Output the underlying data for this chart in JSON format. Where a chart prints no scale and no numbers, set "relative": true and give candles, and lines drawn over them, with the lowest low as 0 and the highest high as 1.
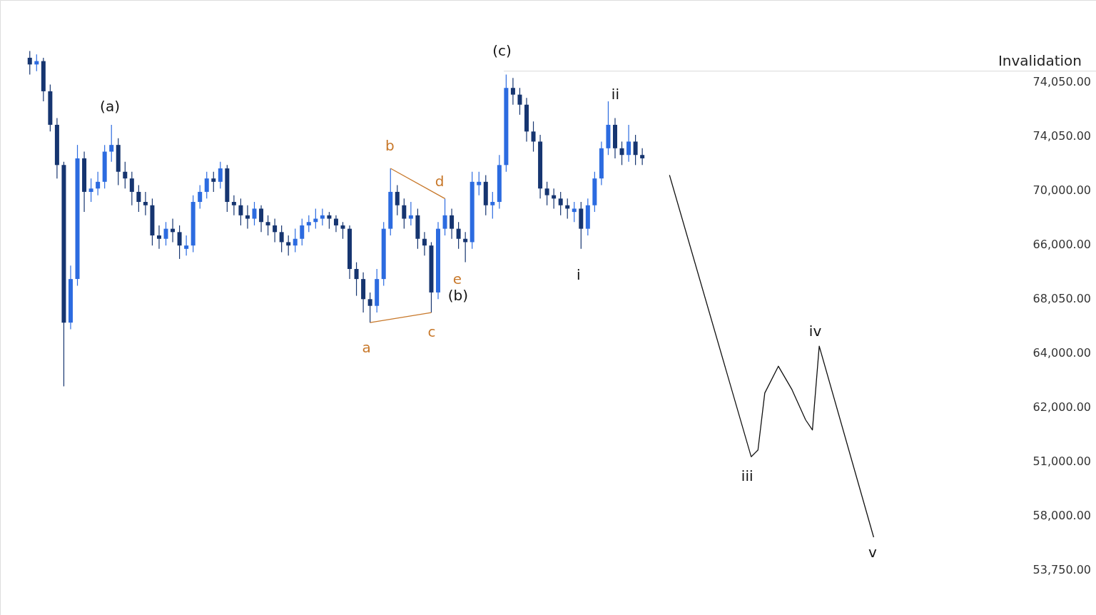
{
  "chart_data": {
    "type": "candlestick",
    "relative": true,
    "colors": [
      "#163570",
      "#2c6be0",
      "#163570",
      "#163570",
      "#163570",
      "#163570",
      "#2c6be0",
      "#2c6be0",
      "#163570",
      "#2c6be0",
      "#2c6be0",
      "#2c6be0",
      "#2c6be0",
      "#163570",
      "#163570",
      "#163570",
      "#163570",
      "#163570",
      "#163570",
      "#163570",
      "#2c6be0",
      "#163570",
      "#163570",
      "#2c6be0",
      "#2c6be0",
      "#2c6be0",
      "#2c6be0",
      "#163570",
      "#2c6be0",
      "#163570",
      "#163570",
      "#163570",
      "#163570",
      "#2c6be0",
      "#163570",
      "#163570",
      "#163570",
      "#163570",
      "#163570",
      "#2c6be0",
      "#2c6be0",
      "#2c6be0",
      "#2c6be0",
      "#2c6be0",
      "#163570",
      "#163570",
      "#163570",
      "#163570",
      "#163570",
      "#163570",
      "#163570",
      "#2c6be0",
      "#2c6be0",
      "#2c6be0",
      "#163570",
      "#163570",
      "#2c6be0",
      "#163570",
      "#163570",
      "#163570",
      "#2c6be0",
      "#2c6be0",
      "#163570",
      "#163570",
      "#163570",
      "#2c6be0",
      "#2c6be0",
      "#163570",
      "#2c6be0",
      "#2c6be0",
      "#2c6be0",
      "#163570",
      "#163570",
      "#163570",
      "#163570",
      "#163570",
      "#163570",
      "#163570",
      "#163570",
      "#163570",
      "#2c6be0",
      "#163570",
      "#2c6be0",
      "#2c6be0",
      "#2c6be0",
      "#2c6be0",
      "#163570",
      "#163570",
      "#2c6be0",
      "#163570",
      "#163570",
      null,
      null,
      null,
      null,
      null,
      null,
      null,
      null,
      null,
      null,
      null,
      null,
      null,
      null,
      null,
      null,
      null,
      null,
      null,
      null,
      null,
      null,
      null,
      null,
      null,
      null,
      null,
      null,
      null,
      null,
      null,
      null,
      null,
      null
    ],
    "tick_labels": false,
    "categories": [
      null,
      null,
      null,
      null,
      null,
      null,
      null,
      null,
      null,
      null,
      null,
      null,
      null,
      null,
      null,
      null,
      null,
      null,
      null,
      null,
      null,
      null,
      null,
      null,
      null,
      null,
      null,
      null,
      null,
      null,
      null,
      null,
      null,
      null,
      null,
      null,
      null,
      null,
      null,
      null,
      null,
      null,
      null,
      null,
      null,
      null,
      null,
      null,
      null,
      null,
      null,
      null,
      null,
      null,
      null,
      null,
      null,
      null,
      null,
      null,
      null,
      null,
      null,
      null,
      null,
      null,
      null,
      null,
      null,
      null,
      null,
      null,
      null,
      null,
      null,
      null,
      null,
      null,
      null,
      null,
      null,
      null,
      null,
      null,
      null,
      null,
      null,
      null,
      null,
      null,
      null,
      null,
      null,
      null,
      null,
      null,
      null,
      null,
      null,
      null,
      null,
      null,
      null,
      null,
      null,
      null,
      null,
      null,
      null,
      null,
      null,
      null,
      null,
      null,
      null,
      null,
      null,
      null,
      null,
      null,
      null,
      null,
      null,
      null,
      null
    ],
    "ohlc": [
      [
        0.98,
        1.0,
        0.93,
        0.96
      ],
      [
        0.96,
        0.99,
        0.94,
        0.97
      ],
      [
        0.97,
        0.98,
        0.85,
        0.88
      ],
      [
        0.88,
        0.9,
        0.76,
        0.78
      ],
      [
        0.78,
        0.8,
        0.62,
        0.66
      ],
      [
        0.66,
        0.67,
        0.0,
        0.19
      ],
      [
        0.19,
        0.36,
        0.17,
        0.32
      ],
      [
        0.32,
        0.72,
        0.3,
        0.68
      ],
      [
        0.68,
        0.7,
        0.52,
        0.58
      ],
      [
        0.58,
        0.62,
        0.55,
        0.59
      ],
      [
        0.59,
        0.64,
        0.57,
        0.61
      ],
      [
        0.61,
        0.72,
        0.59,
        0.7
      ],
      [
        0.7,
        0.78,
        0.67,
        0.72
      ],
      [
        0.72,
        0.74,
        0.6,
        0.64
      ],
      [
        0.64,
        0.67,
        0.59,
        0.62
      ],
      [
        0.62,
        0.64,
        0.54,
        0.58
      ],
      [
        0.58,
        0.6,
        0.52,
        0.55
      ],
      [
        0.55,
        0.58,
        0.51,
        0.54
      ],
      [
        0.54,
        0.56,
        0.42,
        0.45
      ],
      [
        0.45,
        0.48,
        0.41,
        0.44
      ],
      [
        0.44,
        0.49,
        0.42,
        0.47
      ],
      [
        0.47,
        0.5,
        0.43,
        0.46
      ],
      [
        0.46,
        0.48,
        0.38,
        0.42
      ],
      [
        0.41,
        0.45,
        0.39,
        0.42
      ],
      [
        0.42,
        0.57,
        0.4,
        0.55
      ],
      [
        0.55,
        0.6,
        0.53,
        0.58
      ],
      [
        0.58,
        0.64,
        0.56,
        0.62
      ],
      [
        0.62,
        0.64,
        0.58,
        0.61
      ],
      [
        0.61,
        0.67,
        0.59,
        0.65
      ],
      [
        0.65,
        0.66,
        0.52,
        0.55
      ],
      [
        0.55,
        0.57,
        0.51,
        0.54
      ],
      [
        0.54,
        0.56,
        0.48,
        0.51
      ],
      [
        0.51,
        0.54,
        0.47,
        0.5
      ],
      [
        0.5,
        0.55,
        0.48,
        0.53
      ],
      [
        0.53,
        0.54,
        0.46,
        0.49
      ],
      [
        0.49,
        0.51,
        0.45,
        0.48
      ],
      [
        0.48,
        0.5,
        0.43,
        0.46
      ],
      [
        0.46,
        0.48,
        0.4,
        0.43
      ],
      [
        0.43,
        0.45,
        0.39,
        0.42
      ],
      [
        0.42,
        0.47,
        0.4,
        0.44
      ],
      [
        0.44,
        0.5,
        0.42,
        0.48
      ],
      [
        0.48,
        0.51,
        0.46,
        0.49
      ],
      [
        0.49,
        0.53,
        0.47,
        0.5
      ],
      [
        0.5,
        0.53,
        0.48,
        0.51
      ],
      [
        0.51,
        0.52,
        0.47,
        0.5
      ],
      [
        0.5,
        0.51,
        0.46,
        0.48
      ],
      [
        0.48,
        0.49,
        0.44,
        0.47
      ],
      [
        0.47,
        0.48,
        0.32,
        0.35
      ],
      [
        0.35,
        0.37,
        0.27,
        0.32
      ],
      [
        0.32,
        0.34,
        0.22,
        0.26
      ],
      [
        0.26,
        0.28,
        0.19,
        0.24
      ],
      [
        0.24,
        0.35,
        0.22,
        0.32
      ],
      [
        0.32,
        0.49,
        0.3,
        0.47
      ],
      [
        0.47,
        0.65,
        0.45,
        0.58
      ],
      [
        0.58,
        0.6,
        0.51,
        0.54
      ],
      [
        0.54,
        0.56,
        0.47,
        0.5
      ],
      [
        0.5,
        0.55,
        0.48,
        0.51
      ],
      [
        0.51,
        0.53,
        0.41,
        0.44
      ],
      [
        0.44,
        0.46,
        0.39,
        0.42
      ],
      [
        0.42,
        0.43,
        0.22,
        0.28
      ],
      [
        0.28,
        0.49,
        0.26,
        0.47
      ],
      [
        0.47,
        0.56,
        0.45,
        0.51
      ],
      [
        0.51,
        0.53,
        0.44,
        0.47
      ],
      [
        0.47,
        0.49,
        0.41,
        0.44
      ],
      [
        0.44,
        0.46,
        0.37,
        0.43
      ],
      [
        0.43,
        0.64,
        0.41,
        0.61
      ],
      [
        0.6,
        0.64,
        0.57,
        0.61
      ],
      [
        0.61,
        0.63,
        0.51,
        0.54
      ],
      [
        0.54,
        0.58,
        0.5,
        0.55
      ],
      [
        0.55,
        0.69,
        0.53,
        0.66
      ],
      [
        0.66,
        0.93,
        0.64,
        0.89
      ],
      [
        0.89,
        0.92,
        0.84,
        0.87
      ],
      [
        0.87,
        0.89,
        0.81,
        0.84
      ],
      [
        0.84,
        0.86,
        0.73,
        0.76
      ],
      [
        0.76,
        0.79,
        0.7,
        0.73
      ],
      [
        0.73,
        0.75,
        0.56,
        0.59
      ],
      [
        0.59,
        0.61,
        0.54,
        0.57
      ],
      [
        0.57,
        0.59,
        0.53,
        0.56
      ],
      [
        0.56,
        0.58,
        0.51,
        0.54
      ],
      [
        0.54,
        0.56,
        0.5,
        0.53
      ],
      [
        0.52,
        0.55,
        0.49,
        0.53
      ],
      [
        0.53,
        0.55,
        0.41,
        0.47
      ],
      [
        0.47,
        0.56,
        0.45,
        0.54
      ],
      [
        0.54,
        0.64,
        0.52,
        0.62
      ],
      [
        0.62,
        0.73,
        0.6,
        0.71
      ],
      [
        0.71,
        0.85,
        0.69,
        0.78
      ],
      [
        0.78,
        0.8,
        0.68,
        0.71
      ],
      [
        0.71,
        0.73,
        0.66,
        0.69
      ],
      [
        0.69,
        0.78,
        0.67,
        0.73
      ],
      [
        0.73,
        0.75,
        0.66,
        0.69
      ],
      [
        0.69,
        0.71,
        0.66,
        0.68
      ],
      null,
      null,
      null,
      null,
      null,
      null,
      null,
      null,
      null,
      null,
      null,
      null,
      null,
      null,
      null,
      null,
      null,
      null,
      null,
      null,
      null,
      null,
      null,
      null,
      null,
      null,
      null,
      null,
      null,
      null,
      null,
      null,
      null,
      null
    ],
    "series": [
      {
        "type": "line",
        "color": "#c8782a",
        "values": [
          null,
          null,
          null,
          null,
          null,
          null,
          null,
          null,
          null,
          null,
          null,
          null,
          null,
          null,
          null,
          null,
          null,
          null,
          null,
          null,
          null,
          null,
          null,
          null,
          null,
          null,
          null,
          null,
          null,
          null,
          null,
          null,
          null,
          null,
          null,
          null,
          null,
          null,
          null,
          null,
          null,
          null,
          null,
          null,
          null,
          null,
          null,
          null,
          null,
          null,
          0.19,
          null,
          null,
          null,
          null,
          null,
          null,
          null,
          null,
          0.22,
          null,
          null,
          null,
          null,
          null,
          null,
          null,
          null,
          null,
          null,
          null,
          null,
          null,
          null,
          null,
          null,
          null,
          null,
          null,
          null,
          null,
          null,
          null,
          null,
          null,
          null,
          null,
          null,
          null,
          null,
          null,
          null,
          null,
          null,
          null,
          null,
          null,
          null,
          null,
          null,
          null,
          null,
          null,
          null,
          null,
          null,
          null,
          null,
          null,
          null,
          null,
          null,
          null,
          null,
          null,
          null,
          null,
          null,
          null,
          null,
          null,
          null,
          null,
          null,
          null
        ]
      },
      {
        "type": "line",
        "color": "#c8782a",
        "values": [
          null,
          null,
          null,
          null,
          null,
          null,
          null,
          null,
          null,
          null,
          null,
          null,
          null,
          null,
          null,
          null,
          null,
          null,
          null,
          null,
          null,
          null,
          null,
          null,
          null,
          null,
          null,
          null,
          null,
          null,
          null,
          null,
          null,
          null,
          null,
          null,
          null,
          null,
          null,
          null,
          null,
          null,
          null,
          null,
          null,
          null,
          null,
          null,
          null,
          null,
          null,
          null,
          null,
          0.65,
          null,
          null,
          null,
          null,
          null,
          null,
          null,
          0.56,
          null,
          null,
          null,
          null,
          null,
          null,
          null,
          null,
          null,
          null,
          null,
          null,
          null,
          null,
          null,
          null,
          null,
          null,
          null,
          null,
          null,
          null,
          null,
          null,
          null,
          null,
          null,
          null,
          null,
          null,
          null,
          null,
          null,
          null,
          null,
          null,
          null,
          null,
          null,
          null,
          null,
          null,
          null,
          null,
          null,
          null,
          null,
          null,
          null,
          null,
          null,
          null,
          null,
          null,
          null,
          null,
          null,
          null,
          null,
          null,
          null,
          null,
          null
        ]
      },
      {
        "type": "line",
        "color": "#111111",
        "values": [
          null,
          null,
          null,
          null,
          null,
          null,
          null,
          null,
          null,
          null,
          null,
          null,
          null,
          null,
          null,
          null,
          null,
          null,
          null,
          null,
          null,
          null,
          null,
          null,
          null,
          null,
          null,
          null,
          null,
          null,
          null,
          null,
          null,
          null,
          null,
          null,
          null,
          null,
          null,
          null,
          null,
          null,
          null,
          null,
          null,
          null,
          null,
          null,
          null,
          null,
          null,
          null,
          null,
          null,
          null,
          null,
          null,
          null,
          null,
          null,
          null,
          null,
          null,
          null,
          null,
          null,
          null,
          null,
          null,
          null,
          null,
          null,
          null,
          null,
          null,
          null,
          null,
          null,
          null,
          null,
          null,
          null,
          null,
          null,
          null,
          null,
          null,
          null,
          null,
          null,
          null,
          null,
          null,
          null,
          0.63,
          null,
          null,
          null,
          null,
          null,
          null,
          null,
          null,
          null,
          null,
          null,
          -0.21,
          -0.19,
          -0.02,
          null,
          0.06,
          null,
          -0.01,
          null,
          -0.1,
          -0.13,
          0.12,
          null,
          null,
          null,
          null,
          null,
          null,
          null,
          -0.45
        ]
      }
    ],
    "ref_lines": [
      {
        "axis": "y",
        "value": 0.94,
        "label": "Invalidation",
        "color": "#d9d9d9"
      }
    ],
    "annotations": [
      "(a)",
      "b",
      "d",
      "e",
      "(b)",
      "c",
      "a",
      "(c)",
      "ii",
      "i",
      "iii",
      "iv",
      "v",
      "74,050.00",
      "74,050.00",
      "70,000.00",
      "66,000.00",
      "68,050.00",
      "64,000.00",
      "62,000.00",
      "51,000.00",
      "58,000.00",
      "53,750.00"
    ]
  }
}
